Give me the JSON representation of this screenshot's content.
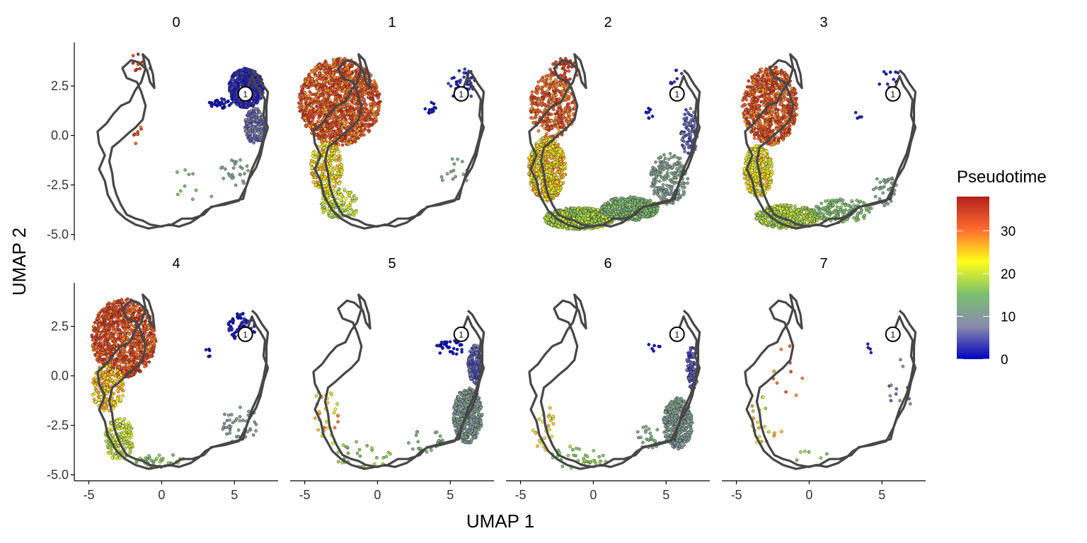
{
  "chart_data": {
    "type": "scatter",
    "xlabel": "UMAP 1",
    "ylabel": "UMAP 2",
    "xlim": [
      -6,
      8
    ],
    "ylim": [
      -5.3,
      4.7
    ],
    "x_ticks": [
      -5,
      0,
      5
    ],
    "x_tick_labels": [
      "-5",
      "0",
      "5"
    ],
    "y_ticks": [
      2.5,
      0,
      -2.5,
      -5
    ],
    "y_tick_labels": [
      "2.5",
      "0.0",
      "-2.5",
      "-5.0"
    ],
    "grid": false,
    "legend_position": "right",
    "facet_layout": {
      "rows": 2,
      "cols": 4
    },
    "facets": [
      "0",
      "1",
      "2",
      "3",
      "4",
      "5",
      "6",
      "7"
    ],
    "colorbar": {
      "title": "Pseudotime",
      "range": [
        0,
        38
      ],
      "ticks": [
        0,
        10,
        20,
        30
      ],
      "tick_labels": [
        "0",
        "10",
        "20",
        "30"
      ],
      "colors": [
        "#0000c0",
        "#8a8aad",
        "#7ac06e",
        "#ffff1a",
        "#ff6a2f",
        "#b2221d"
      ]
    },
    "root_node": {
      "label": "1",
      "x": 5.75,
      "y": 2.1
    },
    "trajectory": [
      [
        5.75,
        2.1
      ],
      [
        6.2,
        3.0
      ],
      [
        6.5,
        2.5
      ],
      [
        6.8,
        2.2
      ],
      [
        7.1,
        1.8
      ],
      [
        7.0,
        1.0
      ],
      [
        7.3,
        0.4
      ],
      [
        7.0,
        -0.3
      ],
      [
        6.8,
        -1.0
      ],
      [
        6.5,
        -1.6
      ],
      [
        6.0,
        -2.2
      ],
      [
        5.8,
        -2.6
      ],
      [
        5.6,
        -3.2
      ],
      [
        4.5,
        -3.4
      ],
      [
        3.5,
        -3.6
      ],
      [
        3.0,
        -3.8
      ],
      [
        2.6,
        -4.1
      ],
      [
        2.0,
        -4.4
      ],
      [
        1.2,
        -4.6
      ],
      [
        0.5,
        -4.5
      ],
      [
        0.0,
        -4.6
      ],
      [
        -0.8,
        -4.5
      ],
      [
        -1.3,
        -4.3
      ],
      [
        -1.8,
        -4.2
      ],
      [
        -2.4,
        -4.0
      ],
      [
        -2.8,
        -3.5
      ],
      [
        -3.1,
        -3.0
      ],
      [
        -3.3,
        -2.5
      ],
      [
        -3.4,
        -1.9
      ],
      [
        -3.6,
        -1.3
      ],
      [
        -3.4,
        -0.6
      ],
      [
        -2.9,
        -0.3
      ],
      [
        -2.3,
        0.1
      ],
      [
        -1.8,
        0.4
      ],
      [
        -1.3,
        0.8
      ],
      [
        -1.1,
        1.5
      ],
      [
        -1.4,
        2.2
      ],
      [
        -1.7,
        2.7
      ],
      [
        -2.4,
        2.9
      ],
      [
        -2.7,
        3.4
      ],
      [
        -2.1,
        3.8
      ],
      [
        -1.6,
        3.7
      ],
      [
        -1.0,
        3.3
      ],
      [
        -0.8,
        2.7
      ],
      [
        -0.5,
        2.4
      ],
      [
        -0.6,
        3.1
      ],
      [
        -0.9,
        3.8
      ],
      [
        -1.3,
        4.1
      ],
      [
        -1.1,
        3.4
      ],
      [
        -1.4,
        2.7
      ],
      [
        -1.8,
        2.3
      ],
      [
        -2.2,
        1.7
      ],
      [
        -2.8,
        1.5
      ],
      [
        -3.3,
        1.1
      ],
      [
        -3.8,
        0.6
      ],
      [
        -4.4,
        0.2
      ],
      [
        -4.3,
        -0.4
      ],
      [
        -3.9,
        -1.0
      ],
      [
        -4.3,
        -1.7
      ],
      [
        -3.9,
        -2.3
      ],
      [
        -3.7,
        -3.0
      ],
      [
        -3.1,
        -3.8
      ],
      [
        -2.5,
        -4.2
      ],
      [
        -1.8,
        -4.5
      ],
      [
        -0.9,
        -4.7
      ],
      [
        -0.2,
        -4.6
      ],
      [
        0.7,
        -4.5
      ],
      [
        1.4,
        -4.2
      ],
      [
        2.1,
        -4.2
      ],
      [
        2.9,
        -4.0
      ],
      [
        3.4,
        -3.6
      ],
      [
        4.3,
        -3.5
      ],
      [
        5.3,
        -3.3
      ],
      [
        5.8,
        -2.6
      ],
      [
        6.2,
        -1.7
      ],
      [
        6.7,
        -0.9
      ],
      [
        7.0,
        -0.1
      ],
      [
        7.2,
        0.7
      ],
      [
        7.2,
        1.5
      ],
      [
        7.3,
        2.2
      ],
      [
        6.9,
        2.6
      ],
      [
        6.5,
        3.1
      ],
      [
        6.2,
        3.3
      ]
    ],
    "series": [
      {
        "name": "0",
        "regions": [
          {
            "cx": 5.8,
            "cy": 2.4,
            "rx": 1.2,
            "ry": 1.0,
            "n": 620,
            "pt": [
              1,
              4
            ]
          },
          {
            "cx": 6.4,
            "cy": 0.5,
            "rx": 0.7,
            "ry": 0.9,
            "n": 200,
            "pt": [
              4,
              9
            ]
          },
          {
            "cx": 4.0,
            "cy": 1.6,
            "rx": 0.8,
            "ry": 0.3,
            "n": 35,
            "pt": [
              0,
              2
            ]
          },
          {
            "cx": 5.2,
            "cy": -1.9,
            "rx": 1.2,
            "ry": 0.7,
            "n": 25,
            "pt": [
              9,
              14
            ]
          },
          {
            "cx": -1.5,
            "cy": 3.6,
            "rx": 1.0,
            "ry": 0.6,
            "n": 14,
            "pt": [
              30,
              37
            ]
          },
          {
            "cx": -1.7,
            "cy": 0.0,
            "rx": 0.5,
            "ry": 0.7,
            "n": 8,
            "pt": [
              30,
              36
            ]
          },
          {
            "cx": 1.8,
            "cy": -2.6,
            "rx": 2.0,
            "ry": 0.9,
            "n": 10,
            "pt": [
              12,
              16
            ]
          }
        ]
      },
      {
        "name": "1",
        "regions": [
          {
            "cx": -2.6,
            "cy": 1.7,
            "rx": 2.8,
            "ry": 2.2,
            "n": 1400,
            "pt": [
              27,
              37
            ]
          },
          {
            "cx": -3.5,
            "cy": -1.6,
            "rx": 1.1,
            "ry": 1.4,
            "n": 260,
            "pt": [
              20,
              28
            ]
          },
          {
            "cx": -2.6,
            "cy": -3.5,
            "rx": 1.3,
            "ry": 0.8,
            "n": 130,
            "pt": [
              16,
              23
            ]
          },
          {
            "cx": 5.8,
            "cy": 2.6,
            "rx": 1.0,
            "ry": 0.8,
            "n": 45,
            "pt": [
              1,
              4
            ]
          },
          {
            "cx": 3.6,
            "cy": 1.4,
            "rx": 0.4,
            "ry": 0.3,
            "n": 12,
            "pt": [
              0,
              2
            ]
          },
          {
            "cx": 5.4,
            "cy": -1.8,
            "rx": 1.3,
            "ry": 0.8,
            "n": 14,
            "pt": [
              8,
              13
            ]
          }
        ]
      },
      {
        "name": "2",
        "regions": [
          {
            "cx": -3.2,
            "cy": -1.7,
            "rx": 1.3,
            "ry": 1.6,
            "n": 650,
            "pt": [
              19,
              29
            ]
          },
          {
            "cx": -1.0,
            "cy": -4.2,
            "rx": 2.4,
            "ry": 0.55,
            "n": 800,
            "pt": [
              15,
              22
            ]
          },
          {
            "cx": 2.5,
            "cy": -3.7,
            "rx": 2.0,
            "ry": 0.6,
            "n": 450,
            "pt": [
              12,
              17
            ]
          },
          {
            "cx": 5.2,
            "cy": -2.2,
            "rx": 1.3,
            "ry": 1.3,
            "n": 220,
            "pt": [
              9,
              13
            ]
          },
          {
            "cx": -2.8,
            "cy": 1.5,
            "rx": 1.6,
            "ry": 1.6,
            "n": 380,
            "pt": [
              27,
              36
            ]
          },
          {
            "cx": -2.0,
            "cy": 3.3,
            "rx": 1.0,
            "ry": 0.6,
            "n": 60,
            "pt": [
              32,
              37
            ]
          },
          {
            "cx": 6.6,
            "cy": 0.2,
            "rx": 0.6,
            "ry": 1.2,
            "n": 90,
            "pt": [
              3,
              8
            ]
          },
          {
            "cx": 3.8,
            "cy": 1.1,
            "rx": 0.3,
            "ry": 0.3,
            "n": 8,
            "pt": [
              0,
              2
            ]
          },
          {
            "cx": 5.8,
            "cy": 2.8,
            "rx": 0.6,
            "ry": 0.6,
            "n": 10,
            "pt": [
              1,
              4
            ]
          }
        ]
      },
      {
        "name": "3",
        "regions": [
          {
            "cx": -2.7,
            "cy": 1.5,
            "rx": 1.9,
            "ry": 2.0,
            "n": 800,
            "pt": [
              27,
              37
            ]
          },
          {
            "cx": -3.5,
            "cy": -1.8,
            "rx": 1.0,
            "ry": 1.3,
            "n": 380,
            "pt": [
              19,
              27
            ]
          },
          {
            "cx": -1.5,
            "cy": -4.1,
            "rx": 2.2,
            "ry": 0.6,
            "n": 420,
            "pt": [
              16,
              21
            ]
          },
          {
            "cx": 2.3,
            "cy": -3.8,
            "rx": 2.0,
            "ry": 0.6,
            "n": 150,
            "pt": [
              13,
              17
            ]
          },
          {
            "cx": 5.2,
            "cy": -2.8,
            "rx": 1.0,
            "ry": 0.8,
            "n": 40,
            "pt": [
              9,
              13
            ]
          },
          {
            "cx": 5.5,
            "cy": 2.8,
            "rx": 0.8,
            "ry": 0.6,
            "n": 15,
            "pt": [
              0,
              3
            ]
          },
          {
            "cx": 3.4,
            "cy": 1.0,
            "rx": 0.3,
            "ry": 0.3,
            "n": 4,
            "pt": [
              0,
              2
            ]
          }
        ]
      },
      {
        "name": "4",
        "regions": [
          {
            "cx": -2.6,
            "cy": 1.9,
            "rx": 2.2,
            "ry": 2.0,
            "n": 1000,
            "pt": [
              28,
              37
            ]
          },
          {
            "cx": -3.7,
            "cy": -0.6,
            "rx": 1.1,
            "ry": 1.2,
            "n": 200,
            "pt": [
              22,
              29
            ]
          },
          {
            "cx": -2.9,
            "cy": -3.2,
            "rx": 1.0,
            "ry": 1.1,
            "n": 160,
            "pt": [
              17,
              23
            ]
          },
          {
            "cx": 0.0,
            "cy": -4.3,
            "rx": 1.8,
            "ry": 0.4,
            "n": 40,
            "pt": [
              14,
              18
            ]
          },
          {
            "cx": 5.5,
            "cy": 2.5,
            "rx": 1.0,
            "ry": 0.7,
            "n": 80,
            "pt": [
              0,
              3
            ]
          },
          {
            "cx": 5.4,
            "cy": -2.5,
            "rx": 1.3,
            "ry": 1.0,
            "n": 45,
            "pt": [
              8,
              13
            ]
          },
          {
            "cx": 3.2,
            "cy": 1.2,
            "rx": 0.3,
            "ry": 0.3,
            "n": 5,
            "pt": [
              0,
              2
            ]
          }
        ]
      },
      {
        "name": "5",
        "regions": [
          {
            "cx": 6.2,
            "cy": -2.0,
            "rx": 1.0,
            "ry": 1.4,
            "n": 500,
            "pt": [
              8,
              13
            ]
          },
          {
            "cx": 6.7,
            "cy": 0.6,
            "rx": 0.5,
            "ry": 1.0,
            "n": 160,
            "pt": [
              3,
              8
            ]
          },
          {
            "cx": 5.0,
            "cy": 1.4,
            "rx": 1.0,
            "ry": 0.4,
            "n": 35,
            "pt": [
              0,
              2
            ]
          },
          {
            "cx": -3.5,
            "cy": -2.0,
            "rx": 0.9,
            "ry": 1.6,
            "n": 30,
            "pt": [
              20,
              30
            ]
          },
          {
            "cx": -1.0,
            "cy": -4.0,
            "rx": 2.0,
            "ry": 0.7,
            "n": 30,
            "pt": [
              14,
              19
            ]
          },
          {
            "cx": 3.3,
            "cy": -3.3,
            "rx": 1.2,
            "ry": 0.6,
            "n": 25,
            "pt": [
              11,
              15
            ]
          }
        ]
      },
      {
        "name": "6",
        "regions": [
          {
            "cx": 5.8,
            "cy": -2.4,
            "rx": 1.0,
            "ry": 1.3,
            "n": 420,
            "pt": [
              8,
              13
            ]
          },
          {
            "cx": 6.8,
            "cy": 0.4,
            "rx": 0.4,
            "ry": 1.1,
            "n": 110,
            "pt": [
              2,
              7
            ]
          },
          {
            "cx": -3.4,
            "cy": -2.6,
            "rx": 0.8,
            "ry": 1.2,
            "n": 25,
            "pt": [
              20,
              27
            ]
          },
          {
            "cx": -1.0,
            "cy": -4.1,
            "rx": 2.0,
            "ry": 0.6,
            "n": 35,
            "pt": [
              14,
              19
            ]
          },
          {
            "cx": 3.8,
            "cy": -3.0,
            "rx": 1.0,
            "ry": 0.7,
            "n": 25,
            "pt": [
              11,
              15
            ]
          },
          {
            "cx": 4.2,
            "cy": 1.5,
            "rx": 0.5,
            "ry": 0.3,
            "n": 6,
            "pt": [
              0,
              2
            ]
          }
        ]
      },
      {
        "name": "7",
        "regions": [
          {
            "cx": -3.0,
            "cy": -2.4,
            "rx": 1.2,
            "ry": 1.4,
            "n": 20,
            "pt": [
              18,
              30
            ]
          },
          {
            "cx": 6.3,
            "cy": -0.6,
            "rx": 0.8,
            "ry": 1.5,
            "n": 12,
            "pt": [
              4,
              12
            ]
          },
          {
            "cx": -1.5,
            "cy": 0.2,
            "rx": 1.2,
            "ry": 1.8,
            "n": 10,
            "pt": [
              26,
              34
            ]
          },
          {
            "cx": 0.3,
            "cy": -4.2,
            "rx": 1.5,
            "ry": 0.5,
            "n": 6,
            "pt": [
              14,
              19
            ]
          },
          {
            "cx": 4.0,
            "cy": 1.4,
            "rx": 0.6,
            "ry": 0.4,
            "n": 4,
            "pt": [
              0,
              2
            ]
          }
        ]
      }
    ]
  }
}
